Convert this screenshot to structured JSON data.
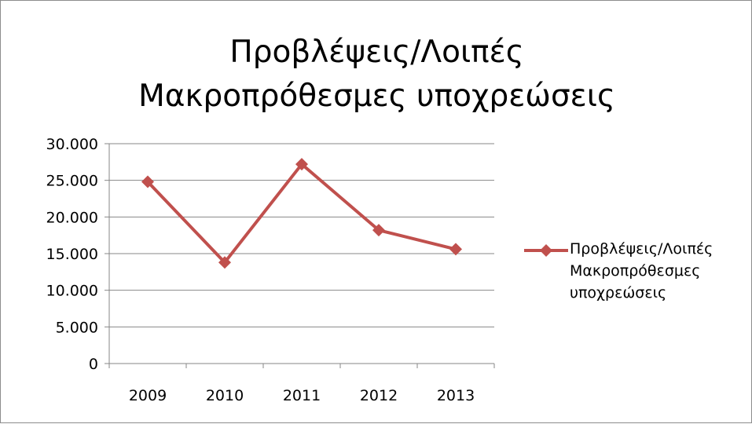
{
  "chart_data": {
    "type": "line",
    "title_lines": [
      "Προβλέψεις/Λοιπές",
      "Μακροπρόθεσμες υποχρεώσεις"
    ],
    "categories": [
      "2009",
      "2010",
      "2011",
      "2012",
      "2013"
    ],
    "series": [
      {
        "name": "Προβλέψεις/Λοιπές Μακροπρόθεσμες υποχρεώσεις",
        "name_lines": [
          "Προβλέψεις/Λοιπές",
          "Μακροπρόθεσμες",
          "υποχρεώσεις"
        ],
        "values": [
          24800,
          13800,
          27200,
          18200,
          15600
        ],
        "color": "#c0504d",
        "marker": "diamond"
      }
    ],
    "ylim": [
      0,
      30000
    ],
    "yticks": [
      0,
      5000,
      10000,
      15000,
      20000,
      25000,
      30000
    ],
    "ytick_labels": [
      "0",
      "5.000",
      "10.000",
      "15.000",
      "20.000",
      "25.000",
      "30.000"
    ],
    "grid": true,
    "legend_position": "right"
  }
}
